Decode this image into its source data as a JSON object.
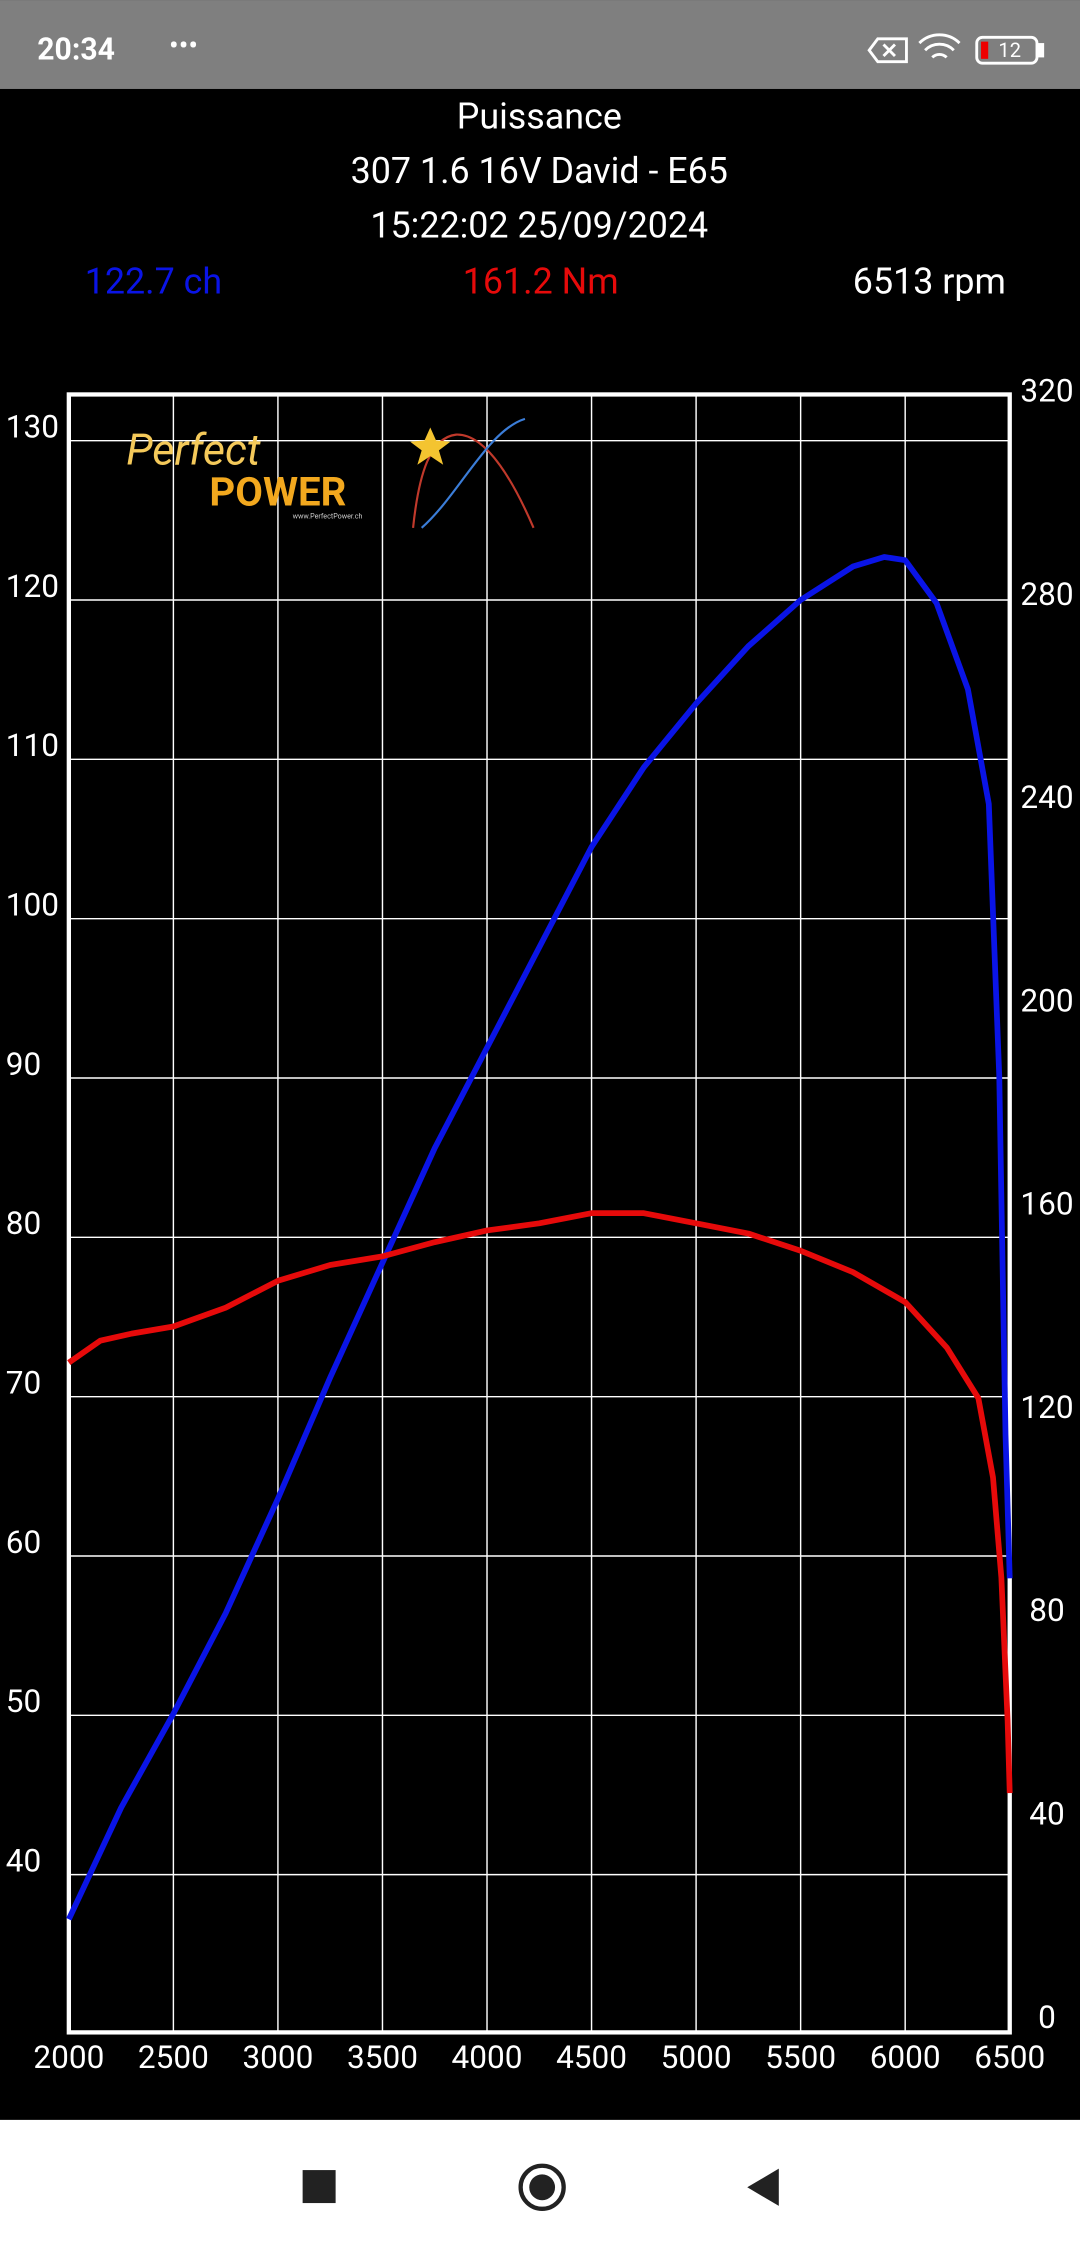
{
  "status_bar": {
    "time": "20:34",
    "battery": "12"
  },
  "header": {
    "title": "Puissance",
    "subtitle": "307 1.6 16V David - E65",
    "timestamp": "15:22:02 25/09/2024",
    "power": "122.7 ch",
    "torque": "161.2 Nm",
    "rpm": "6513 rpm"
  },
  "logo": {
    "line1": "Perfect",
    "line2": "POWER",
    "url": "www.PerfectPower.ch"
  },
  "chart_data": {
    "type": "line",
    "xlim": [
      2000,
      6500
    ],
    "xticks": [
      2000,
      2500,
      3000,
      3500,
      4000,
      4500,
      5000,
      5500,
      6000,
      6500
    ],
    "ylim": [
      30.1,
      132.9
    ],
    "yticks": [
      40,
      50,
      60,
      70,
      80,
      90,
      100,
      110,
      120,
      130
    ],
    "y2lim": [
      0,
      322.3
    ],
    "y2ticks": [
      0,
      40,
      80,
      120,
      160,
      200,
      240,
      280,
      320
    ],
    "grid": true,
    "series": [
      {
        "color": "#0a14e6",
        "axis": "y",
        "x": [
          2000,
          2250,
          2500,
          2750,
          3000,
          3250,
          3500,
          3750,
          4000,
          4250,
          4500,
          4750,
          5000,
          5250,
          5500,
          5750,
          5900,
          6000,
          6150,
          6300,
          6400,
          6450,
          6480,
          6500
        ],
        "values": [
          37.2,
          44.2,
          50.1,
          56.4,
          63.6,
          71.2,
          78.4,
          85.6,
          91.9,
          98.2,
          104.5,
          109.5,
          113.5,
          117.1,
          120.0,
          122.1,
          122.7,
          122.5,
          119.8,
          114.4,
          107.2,
          90.1,
          67.6,
          58.6
        ]
      },
      {
        "color": "#e60a0a",
        "axis": "y2",
        "x": [
          2000,
          2150,
          2300,
          2500,
          2750,
          3000,
          3250,
          3500,
          3750,
          4000,
          4250,
          4500,
          4750,
          5000,
          5250,
          5500,
          5750,
          6000,
          6200,
          6350,
          6420,
          6460,
          6490,
          6500
        ],
        "values": [
          131.8,
          136.1,
          137.5,
          138.9,
          142.6,
          147.9,
          151.0,
          152.7,
          155.5,
          157.8,
          159.2,
          161.2,
          161.2,
          159.2,
          157.2,
          153.8,
          149.6,
          143.7,
          134.7,
          124.8,
          109.2,
          89.5,
          61.3,
          47.1
        ]
      }
    ]
  }
}
